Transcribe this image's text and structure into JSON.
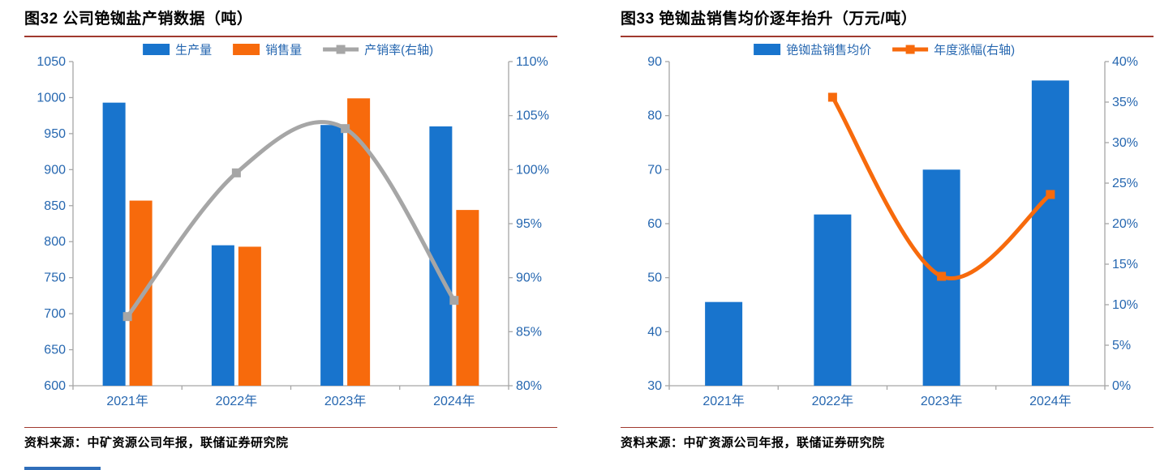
{
  "colors": {
    "bar_blue": "#1874CD",
    "bar_orange": "#F76A0C",
    "line_gray": "#A6A6A6",
    "axis_text": "#2667B0",
    "axis_line": "#A6A6A6",
    "rule_red": "#A0392E",
    "footer_accent_blue": "#2F6EBA"
  },
  "panels": [
    {
      "source": "资料来源：中矿资源公司年报，联储证券研究院"
    },
    {
      "source": "资料来源：中矿资源公司年报，联储证券研究院"
    }
  ],
  "chart_data": [
    {
      "type": "bar",
      "title": "图32 公司铯铷盐产销数据（吨）",
      "categories": [
        "2021年",
        "2022年",
        "2023年",
        "2024年"
      ],
      "series": [
        {
          "name": "生产量",
          "kind": "bar",
          "axis": "left",
          "color_key": "bar_blue",
          "values": [
            993,
            795,
            962,
            960
          ]
        },
        {
          "name": "销售量",
          "kind": "bar",
          "axis": "left",
          "color_key": "bar_orange",
          "values": [
            857,
            793,
            999,
            844
          ]
        },
        {
          "name": "产销率(右轴)",
          "kind": "line",
          "axis": "right",
          "color_key": "line_gray",
          "values": [
            86.4,
            99.7,
            103.8,
            87.9
          ]
        }
      ],
      "left_axis": {
        "min": 600,
        "max": 1050,
        "step": 50,
        "format": "number"
      },
      "right_axis": {
        "min": 80,
        "max": 110,
        "step": 5,
        "format": "percent"
      },
      "grid": false,
      "legend_position": "top"
    },
    {
      "type": "bar",
      "title": "图33 铯铷盐销售均价逐年抬升（万元/吨）",
      "categories": [
        "2021年",
        "2022年",
        "2023年",
        "2024年"
      ],
      "series": [
        {
          "name": "铯铷盐销售均价",
          "kind": "bar",
          "axis": "left",
          "color_key": "bar_blue",
          "values": [
            45.5,
            61.7,
            70,
            86.5
          ]
        },
        {
          "name": "年度涨幅(右轴)",
          "kind": "line",
          "axis": "right",
          "color_key": "bar_orange",
          "values": [
            null,
            35.6,
            13.5,
            23.6
          ]
        }
      ],
      "left_axis": {
        "min": 30,
        "max": 90,
        "step": 10,
        "format": "number"
      },
      "right_axis": {
        "min": 0,
        "max": 40,
        "step": 5,
        "format": "percent"
      },
      "grid": false,
      "legend_position": "top"
    }
  ]
}
